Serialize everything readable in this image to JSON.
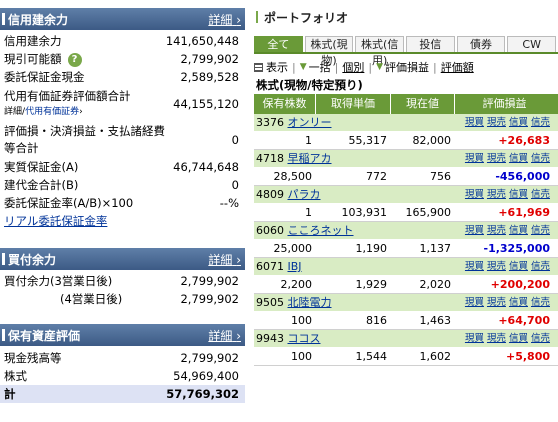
{
  "credit": {
    "title": "信用建余力",
    "detail": "詳細",
    "rows": [
      {
        "label": "信用建余力",
        "value": "141,650,448"
      },
      {
        "label": "現引可能額",
        "value": "2,799,902"
      },
      {
        "label": "委託保証金現金",
        "value": "2,589,528"
      },
      {
        "label": "代用有価証券評価額合計",
        "value": "44,155,120"
      },
      {
        "label": "評価損・決済損益・支払諸経費等合計",
        "value": "0"
      },
      {
        "label": "実質保証金(A)",
        "value": "46,744,648"
      },
      {
        "label": "建代金合計(B)",
        "value": "0"
      },
      {
        "label": "委託保証金率(A/B)×100",
        "value": "--%"
      }
    ],
    "sub_prefix": "詳細",
    "sub_link": "代用有価証券",
    "realtime_link": "リアル委託保証金率"
  },
  "buying": {
    "title": "買付余力",
    "detail": "詳細",
    "rows": [
      {
        "label": "買付余力(3営業日後)",
        "value": "2,799,902"
      },
      {
        "label": "(4営業日後)",
        "value": "2,799,902"
      }
    ]
  },
  "assets": {
    "title": "保有資産評価",
    "detail": "詳細",
    "rows": [
      {
        "label": "現金残高等",
        "value": "2,799,902"
      },
      {
        "label": "株式",
        "value": "54,969,400"
      }
    ],
    "total_label": "計",
    "total_value": "57,769,302"
  },
  "portfolio": {
    "title": "ポートフォリオ",
    "tabs": [
      "全て",
      "株式(現物)",
      "株式(信用)",
      "投信",
      "債券",
      "CW"
    ],
    "view": {
      "display": "表示",
      "bulk": "一括",
      "individual": "個別",
      "pl": "評価損益",
      "pl_rate": "評価額"
    },
    "section": "株式(現物/特定預り)",
    "headers": [
      "保有株数",
      "取得単価",
      "現在値",
      "評価損益"
    ],
    "actions": [
      "現買",
      "現売",
      "信買",
      "信売"
    ],
    "holdings": [
      {
        "code": "3376",
        "name": "オンリー",
        "qty": "1",
        "cost": "55,317",
        "price": "82,000",
        "pl": "+26,683",
        "sign": "pos"
      },
      {
        "code": "4718",
        "name": "早稲アカ",
        "qty": "28,500",
        "cost": "772",
        "price": "756",
        "pl": "-456,000",
        "sign": "neg"
      },
      {
        "code": "4809",
        "name": "パラカ",
        "qty": "1",
        "cost": "103,931",
        "price": "165,900",
        "pl": "+61,969",
        "sign": "pos"
      },
      {
        "code": "6060",
        "name": "こころネット",
        "qty": "25,000",
        "cost": "1,190",
        "price": "1,137",
        "pl": "-1,325,000",
        "sign": "neg"
      },
      {
        "code": "6071",
        "name": "IBJ",
        "qty": "2,200",
        "cost": "1,929",
        "price": "2,020",
        "pl": "+200,200",
        "sign": "pos"
      },
      {
        "code": "9505",
        "name": "北陸電力",
        "qty": "100",
        "cost": "816",
        "price": "1,463",
        "pl": "+64,700",
        "sign": "pos"
      },
      {
        "code": "9943",
        "name": "ココス",
        "qty": "100",
        "cost": "1,544",
        "price": "1,602",
        "pl": "+5,800",
        "sign": "pos"
      }
    ]
  },
  "colors": {
    "header_blue": "#4a6a95",
    "green": "#6a9a38",
    "light_green": "#d9ecc4",
    "positive": "#e00000",
    "negative": "#0000cc"
  }
}
